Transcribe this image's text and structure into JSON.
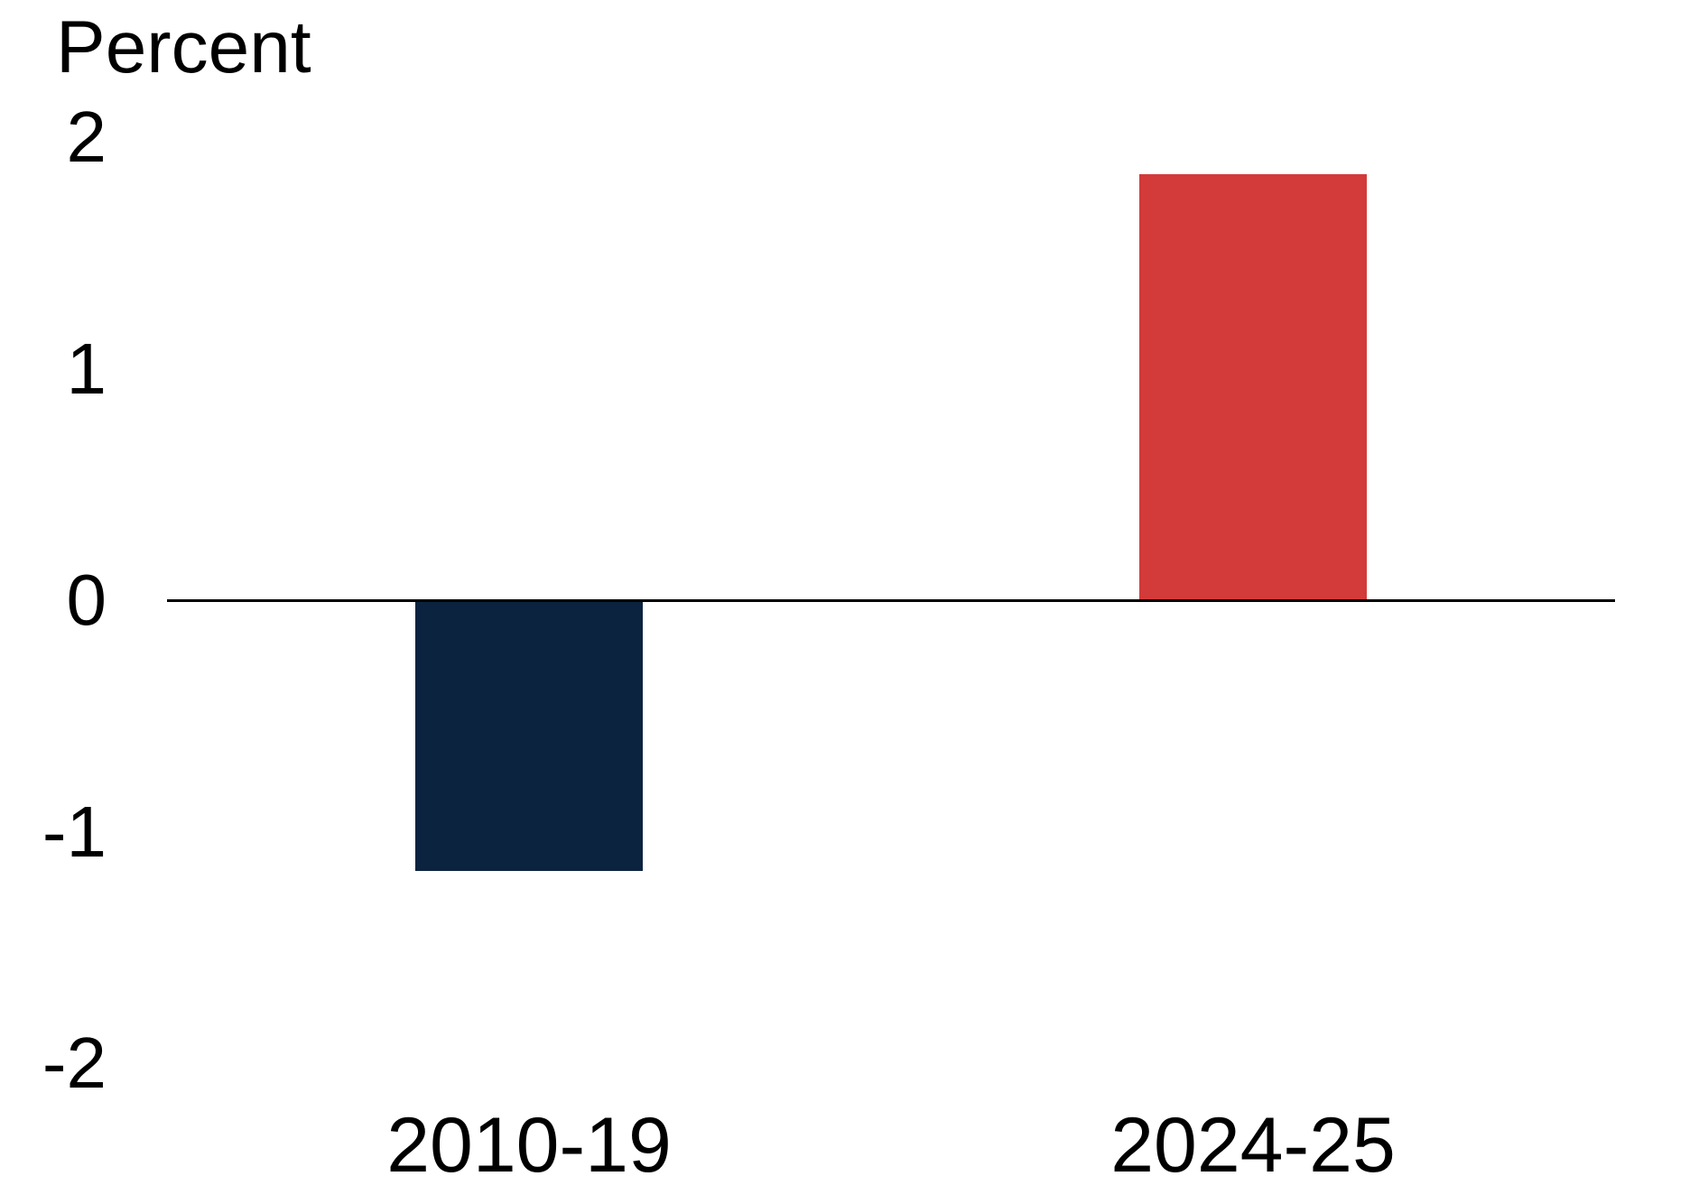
{
  "chart_data": {
    "type": "bar",
    "ylabel": "Percent",
    "categories": [
      "2010-19",
      "2024-25"
    ],
    "values": [
      -1.17,
      1.84
    ],
    "bar_colors": [
      "#0c2340",
      "#d33a3a"
    ],
    "ytick_labels": [
      "2",
      "1",
      "0",
      "-1",
      "-2"
    ],
    "ytick_values": [
      2,
      1,
      0,
      -1,
      -2
    ],
    "ylim": [
      -2,
      2
    ],
    "grid": false,
    "legend_position": "none",
    "axis_line_color": "#000000",
    "background_color": "#ffffff"
  }
}
